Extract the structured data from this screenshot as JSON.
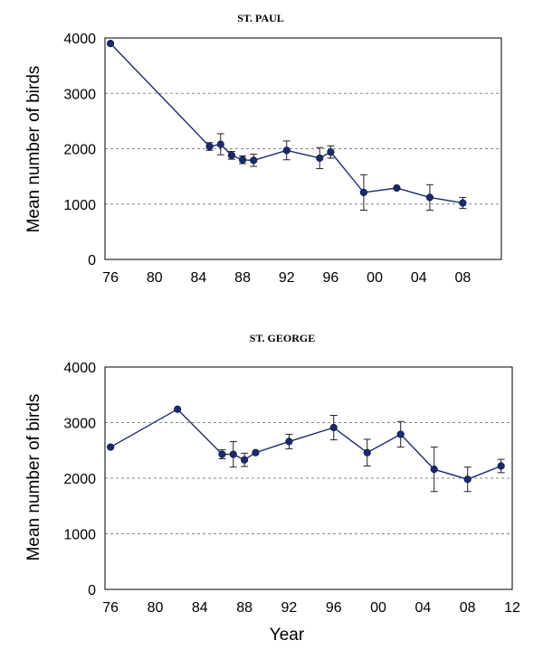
{
  "chart_data": [
    {
      "type": "line",
      "title": "ST. PAUL",
      "xlabel": "",
      "ylabel": "Mean number of birds",
      "xlim": [
        1975.5,
        2011.5
      ],
      "ylim": [
        0,
        4000
      ],
      "x_ticks": [
        1976,
        1980,
        1984,
        1988,
        1992,
        1996,
        2000,
        2004,
        2008
      ],
      "x_tick_labels": [
        "76",
        "80",
        "84",
        "88",
        "92",
        "96",
        "00",
        "04",
        "08"
      ],
      "y_ticks": [
        0,
        1000,
        2000,
        3000,
        4000
      ],
      "y_tick_labels": [
        "0",
        "1000",
        "2000",
        "3000",
        "4000"
      ],
      "grid": "horizontal-dashed",
      "legend": "none",
      "color": "#1a2a6c",
      "series": [
        {
          "x": [
            1976,
            1985,
            1986,
            1987,
            1988,
            1989,
            1992,
            1995,
            1996,
            1999,
            2002,
            2005,
            2008
          ],
          "y": [
            3900,
            2040,
            2080,
            1880,
            1800,
            1790,
            1970,
            1830,
            1940,
            1210,
            1290,
            1120,
            1020
          ],
          "error": [
            0,
            70,
            190,
            70,
            70,
            110,
            170,
            190,
            110,
            320,
            0,
            230,
            100
          ]
        }
      ]
    },
    {
      "type": "line",
      "title": "ST. GEORGE",
      "xlabel": "Year",
      "ylabel": "Mean number of birds",
      "xlim": [
        1975.5,
        2012
      ],
      "ylim": [
        0,
        4000
      ],
      "x_ticks": [
        1976,
        1980,
        1984,
        1988,
        1992,
        1996,
        2000,
        2004,
        2008,
        2012
      ],
      "x_tick_labels": [
        "76",
        "80",
        "84",
        "88",
        "92",
        "96",
        "00",
        "04",
        "08",
        "12"
      ],
      "y_ticks": [
        0,
        1000,
        2000,
        3000,
        4000
      ],
      "y_tick_labels": [
        "0",
        "1000",
        "2000",
        "3000",
        "4000"
      ],
      "grid": "horizontal-dashed",
      "legend": "none",
      "color": "#1a2a6c",
      "series": [
        {
          "x": [
            1976,
            1982,
            1986,
            1987,
            1988,
            1989,
            1992,
            1996,
            1999,
            2002,
            2005,
            2008,
            2011
          ],
          "y": [
            2560,
            3240,
            2430,
            2430,
            2330,
            2460,
            2660,
            2910,
            2460,
            2790,
            2160,
            1980,
            2220
          ],
          "error": [
            0,
            0,
            80,
            230,
            120,
            0,
            130,
            220,
            240,
            230,
            400,
            220,
            120
          ]
        }
      ]
    }
  ]
}
